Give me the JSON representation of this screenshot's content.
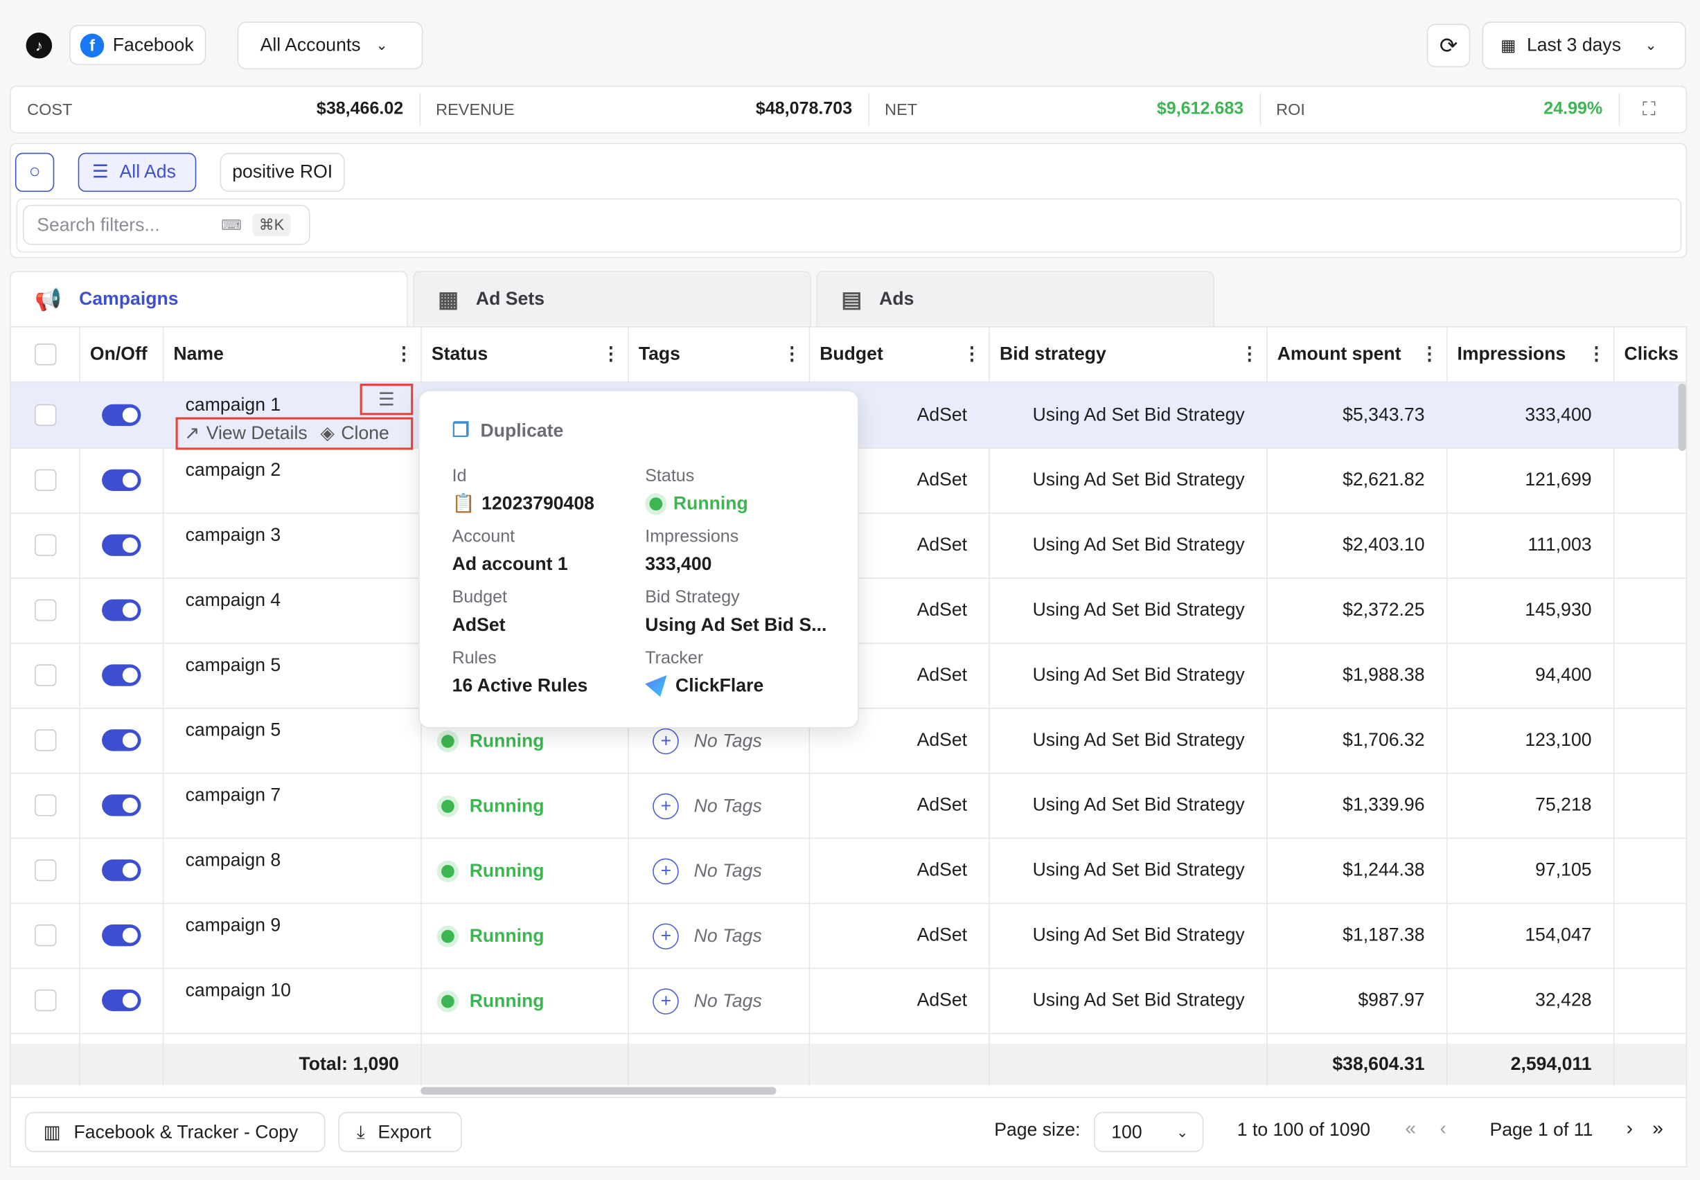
{
  "header": {
    "platform": "Facebook",
    "account_select": "All Accounts",
    "date_range": "Last 3 days"
  },
  "summary": [
    {
      "label": "COST",
      "value": "$38,466.02"
    },
    {
      "label": "REVENUE",
      "value": "$48,078.703"
    },
    {
      "label": "NET",
      "value": "$9,612.683"
    },
    {
      "label": "ROI",
      "value": "24.99%"
    }
  ],
  "filters": {
    "chips": [
      "All Ads",
      "positive ROI"
    ],
    "search_placeholder": "Search filters...",
    "shortcut": "⌘K"
  },
  "tabs": [
    "Campaigns",
    "Ad Sets",
    "Ads"
  ],
  "table": {
    "columns": [
      "On/Off",
      "Name",
      "Status",
      "Tags",
      "Budget",
      "Bid strategy",
      "Amount spent",
      "Impressions",
      "Clicks"
    ],
    "row_actions": [
      "View Details",
      "Clone"
    ],
    "rows": [
      {
        "name": "campaign 1",
        "budget": "AdSet",
        "bid_strategy": "Using Ad Set Bid Strategy",
        "amount_spent": "$5,343.73",
        "impressions": "333,400"
      },
      {
        "name": "campaign 2",
        "budget": "AdSet",
        "bid_strategy": "Using Ad Set Bid Strategy",
        "amount_spent": "$2,621.82",
        "impressions": "121,699"
      },
      {
        "name": "campaign 3",
        "budget": "AdSet",
        "bid_strategy": "Using Ad Set Bid Strategy",
        "amount_spent": "$2,403.10",
        "impressions": "111,003"
      },
      {
        "name": "campaign 4",
        "budget": "AdSet",
        "bid_strategy": "Using Ad Set Bid Strategy",
        "amount_spent": "$2,372.25",
        "impressions": "145,930"
      },
      {
        "name": "campaign 5",
        "budget": "AdSet",
        "bid_strategy": "Using Ad Set Bid Strategy",
        "amount_spent": "$1,988.38",
        "impressions": "94,400"
      },
      {
        "name": "campaign 5",
        "status": "Running",
        "tags": "No Tags",
        "budget": "AdSet",
        "bid_strategy": "Using Ad Set Bid Strategy",
        "amount_spent": "$1,706.32",
        "impressions": "123,100"
      },
      {
        "name": "campaign 7",
        "status": "Running",
        "tags": "No Tags",
        "budget": "AdSet",
        "bid_strategy": "Using Ad Set Bid Strategy",
        "amount_spent": "$1,339.96",
        "impressions": "75,218"
      },
      {
        "name": "campaign 8",
        "status": "Running",
        "tags": "No Tags",
        "budget": "AdSet",
        "bid_strategy": "Using Ad Set Bid Strategy",
        "amount_spent": "$1,244.38",
        "impressions": "97,105"
      },
      {
        "name": "campaign 9",
        "status": "Running",
        "tags": "No Tags",
        "budget": "AdSet",
        "bid_strategy": "Using Ad Set Bid Strategy",
        "amount_spent": "$1,187.38",
        "impressions": "154,047"
      },
      {
        "name": "campaign 10",
        "status": "Running",
        "tags": "No Tags",
        "budget": "AdSet",
        "bid_strategy": "Using Ad Set Bid Strategy",
        "amount_spent": "$987.97",
        "impressions": "32,428"
      }
    ],
    "totals": {
      "name": "Total: 1,090",
      "amount_spent": "$38,604.31",
      "impressions": "2,594,011"
    }
  },
  "popover": {
    "title": "Duplicate",
    "fields": [
      {
        "label": "Id",
        "value": "12023790408"
      },
      {
        "label": "Status",
        "value": "Running"
      },
      {
        "label": "Account",
        "value": "Ad account 1"
      },
      {
        "label": "Impressions",
        "value": "333,400"
      },
      {
        "label": "Budget",
        "value": "AdSet"
      },
      {
        "label": "Bid Strategy",
        "value": "Using Ad Set Bid S..."
      },
      {
        "label": "Rules",
        "value": "16 Active Rules"
      },
      {
        "label": "Tracker",
        "value": "ClickFlare"
      }
    ]
  },
  "footer": {
    "view_button": "Facebook & Tracker - Copy",
    "export_button": "Export",
    "page_size_label": "Page size:",
    "page_size": "100",
    "range": "1 to 100 of 1090",
    "page": "Page 1 of 11"
  }
}
